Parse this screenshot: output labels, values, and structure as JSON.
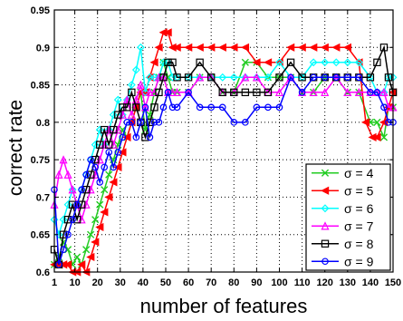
{
  "chart_data": {
    "type": "line",
    "xlabel": "number of features",
    "ylabel": "correct rate",
    "xlim": [
      1,
      150
    ],
    "ylim": [
      0.6,
      0.95
    ],
    "x_ticks": [
      1,
      10,
      20,
      30,
      40,
      50,
      60,
      70,
      80,
      90,
      100,
      110,
      120,
      130,
      140,
      150
    ],
    "y_ticks": [
      0.6,
      0.65,
      0.7,
      0.75,
      0.8,
      0.85,
      0.9,
      0.95
    ],
    "grid": true,
    "legend_position": "bottom-right",
    "series": [
      {
        "name": "σ = 4",
        "color": "#22cc22",
        "marker": "x",
        "points": [
          [
            1,
            0.61
          ],
          [
            3,
            0.62
          ],
          [
            5,
            0.64
          ],
          [
            7,
            0.63
          ],
          [
            9,
            0.61
          ],
          [
            11,
            0.62
          ],
          [
            13,
            0.61
          ],
          [
            15,
            0.63
          ],
          [
            17,
            0.65
          ],
          [
            19,
            0.67
          ],
          [
            21,
            0.69
          ],
          [
            23,
            0.71
          ],
          [
            25,
            0.73
          ],
          [
            27,
            0.75
          ],
          [
            29,
            0.77
          ],
          [
            31,
            0.79
          ],
          [
            33,
            0.78
          ],
          [
            35,
            0.8
          ],
          [
            37,
            0.82
          ],
          [
            39,
            0.84
          ],
          [
            41,
            0.79
          ],
          [
            43,
            0.81
          ],
          [
            45,
            0.84
          ],
          [
            47,
            0.86
          ],
          [
            49,
            0.88
          ],
          [
            51,
            0.86
          ],
          [
            53,
            0.84
          ],
          [
            55,
            0.84
          ],
          [
            60,
            0.84
          ],
          [
            65,
            0.86
          ],
          [
            70,
            0.86
          ],
          [
            75,
            0.84
          ],
          [
            80,
            0.84
          ],
          [
            85,
            0.88
          ],
          [
            90,
            0.88
          ],
          [
            95,
            0.86
          ],
          [
            100,
            0.86
          ],
          [
            105,
            0.86
          ],
          [
            110,
            0.84
          ],
          [
            115,
            0.84
          ],
          [
            120,
            0.86
          ],
          [
            125,
            0.86
          ],
          [
            130,
            0.84
          ],
          [
            135,
            0.84
          ],
          [
            140,
            0.8
          ],
          [
            143,
            0.8
          ],
          [
            146,
            0.78
          ],
          [
            148,
            0.82
          ],
          [
            150,
            0.82
          ]
        ]
      },
      {
        "name": "σ = 5",
        "color": "#ff0000",
        "marker": "triangle-left",
        "points": [
          [
            1,
            0.61
          ],
          [
            3,
            0.61
          ],
          [
            5,
            0.61
          ],
          [
            7,
            0.61
          ],
          [
            9,
            0.6
          ],
          [
            11,
            0.6
          ],
          [
            13,
            0.61
          ],
          [
            15,
            0.6
          ],
          [
            17,
            0.62
          ],
          [
            19,
            0.64
          ],
          [
            21,
            0.66
          ],
          [
            23,
            0.68
          ],
          [
            25,
            0.7
          ],
          [
            27,
            0.72
          ],
          [
            29,
            0.74
          ],
          [
            31,
            0.76
          ],
          [
            33,
            0.78
          ],
          [
            35,
            0.8
          ],
          [
            37,
            0.82
          ],
          [
            39,
            0.84
          ],
          [
            41,
            0.84
          ],
          [
            43,
            0.86
          ],
          [
            45,
            0.88
          ],
          [
            47,
            0.9
          ],
          [
            49,
            0.92
          ],
          [
            51,
            0.92
          ],
          [
            53,
            0.9
          ],
          [
            55,
            0.9
          ],
          [
            60,
            0.9
          ],
          [
            65,
            0.9
          ],
          [
            70,
            0.9
          ],
          [
            75,
            0.9
          ],
          [
            80,
            0.9
          ],
          [
            85,
            0.9
          ],
          [
            90,
            0.88
          ],
          [
            95,
            0.88
          ],
          [
            100,
            0.88
          ],
          [
            105,
            0.9
          ],
          [
            110,
            0.9
          ],
          [
            115,
            0.9
          ],
          [
            120,
            0.9
          ],
          [
            125,
            0.9
          ],
          [
            130,
            0.9
          ],
          [
            135,
            0.88
          ],
          [
            138,
            0.8
          ],
          [
            141,
            0.78
          ],
          [
            143,
            0.78
          ],
          [
            146,
            0.8
          ],
          [
            148,
            0.82
          ],
          [
            150,
            0.84
          ]
        ]
      },
      {
        "name": "σ = 6",
        "color": "#00ffff",
        "marker": "diamond",
        "points": [
          [
            1,
            0.67
          ],
          [
            3,
            0.65
          ],
          [
            5,
            0.67
          ],
          [
            7,
            0.69
          ],
          [
            9,
            0.71
          ],
          [
            11,
            0.69
          ],
          [
            13,
            0.71
          ],
          [
            15,
            0.73
          ],
          [
            17,
            0.75
          ],
          [
            19,
            0.77
          ],
          [
            21,
            0.79
          ],
          [
            23,
            0.77
          ],
          [
            25,
            0.79
          ],
          [
            27,
            0.81
          ],
          [
            29,
            0.83
          ],
          [
            31,
            0.81
          ],
          [
            33,
            0.83
          ],
          [
            35,
            0.85
          ],
          [
            37,
            0.87
          ],
          [
            39,
            0.9
          ],
          [
            41,
            0.84
          ],
          [
            43,
            0.86
          ],
          [
            45,
            0.86
          ],
          [
            47,
            0.86
          ],
          [
            49,
            0.88
          ],
          [
            51,
            0.88
          ],
          [
            53,
            0.86
          ],
          [
            55,
            0.86
          ],
          [
            60,
            0.86
          ],
          [
            65,
            0.86
          ],
          [
            70,
            0.86
          ],
          [
            75,
            0.86
          ],
          [
            80,
            0.86
          ],
          [
            85,
            0.86
          ],
          [
            90,
            0.86
          ],
          [
            95,
            0.86
          ],
          [
            100,
            0.88
          ],
          [
            105,
            0.86
          ],
          [
            110,
            0.86
          ],
          [
            115,
            0.88
          ],
          [
            120,
            0.88
          ],
          [
            125,
            0.88
          ],
          [
            130,
            0.88
          ],
          [
            135,
            0.88
          ],
          [
            140,
            0.86
          ],
          [
            143,
            0.84
          ],
          [
            146,
            0.84
          ],
          [
            148,
            0.86
          ],
          [
            150,
            0.86
          ]
        ]
      },
      {
        "name": "σ = 7",
        "color": "#ff00ff",
        "marker": "triangle-up",
        "points": [
          [
            1,
            0.69
          ],
          [
            3,
            0.73
          ],
          [
            5,
            0.75
          ],
          [
            7,
            0.73
          ],
          [
            9,
            0.71
          ],
          [
            11,
            0.69
          ],
          [
            13,
            0.67
          ],
          [
            15,
            0.69
          ],
          [
            17,
            0.71
          ],
          [
            19,
            0.73
          ],
          [
            21,
            0.75
          ],
          [
            23,
            0.77
          ],
          [
            25,
            0.79
          ],
          [
            27,
            0.77
          ],
          [
            29,
            0.79
          ],
          [
            31,
            0.81
          ],
          [
            33,
            0.83
          ],
          [
            35,
            0.81
          ],
          [
            37,
            0.83
          ],
          [
            39,
            0.85
          ],
          [
            41,
            0.82
          ],
          [
            43,
            0.84
          ],
          [
            45,
            0.84
          ],
          [
            47,
            0.86
          ],
          [
            49,
            0.86
          ],
          [
            51,
            0.84
          ],
          [
            53,
            0.84
          ],
          [
            55,
            0.84
          ],
          [
            60,
            0.84
          ],
          [
            65,
            0.86
          ],
          [
            70,
            0.86
          ],
          [
            75,
            0.84
          ],
          [
            80,
            0.84
          ],
          [
            85,
            0.86
          ],
          [
            90,
            0.86
          ],
          [
            95,
            0.84
          ],
          [
            100,
            0.84
          ],
          [
            105,
            0.86
          ],
          [
            110,
            0.84
          ],
          [
            115,
            0.84
          ],
          [
            120,
            0.84
          ],
          [
            125,
            0.86
          ],
          [
            130,
            0.84
          ],
          [
            135,
            0.84
          ],
          [
            140,
            0.84
          ],
          [
            143,
            0.84
          ],
          [
            146,
            0.84
          ],
          [
            148,
            0.82
          ],
          [
            150,
            0.82
          ]
        ]
      },
      {
        "name": "σ = 8",
        "color": "#000000",
        "marker": "square",
        "points": [
          [
            1,
            0.63
          ],
          [
            3,
            0.61
          ],
          [
            5,
            0.65
          ],
          [
            7,
            0.67
          ],
          [
            9,
            0.69
          ],
          [
            11,
            0.67
          ],
          [
            13,
            0.69
          ],
          [
            15,
            0.71
          ],
          [
            17,
            0.73
          ],
          [
            19,
            0.75
          ],
          [
            21,
            0.77
          ],
          [
            23,
            0.79
          ],
          [
            25,
            0.77
          ],
          [
            27,
            0.79
          ],
          [
            29,
            0.81
          ],
          [
            31,
            0.82
          ],
          [
            33,
            0.82
          ],
          [
            35,
            0.84
          ],
          [
            37,
            0.82
          ],
          [
            39,
            0.8
          ],
          [
            41,
            0.78
          ],
          [
            43,
            0.8
          ],
          [
            45,
            0.82
          ],
          [
            47,
            0.84
          ],
          [
            49,
            0.86
          ],
          [
            51,
            0.88
          ],
          [
            53,
            0.88
          ],
          [
            55,
            0.86
          ],
          [
            60,
            0.86
          ],
          [
            65,
            0.88
          ],
          [
            70,
            0.86
          ],
          [
            75,
            0.84
          ],
          [
            80,
            0.84
          ],
          [
            85,
            0.84
          ],
          [
            90,
            0.84
          ],
          [
            95,
            0.84
          ],
          [
            100,
            0.86
          ],
          [
            105,
            0.88
          ],
          [
            110,
            0.86
          ],
          [
            115,
            0.86
          ],
          [
            120,
            0.86
          ],
          [
            125,
            0.86
          ],
          [
            130,
            0.86
          ],
          [
            135,
            0.86
          ],
          [
            140,
            0.86
          ],
          [
            143,
            0.88
          ],
          [
            146,
            0.9
          ],
          [
            148,
            0.86
          ],
          [
            150,
            0.84
          ]
        ]
      },
      {
        "name": "σ = 9",
        "color": "#0000ff",
        "marker": "circle",
        "points": [
          [
            1,
            0.71
          ],
          [
            3,
            0.61
          ],
          [
            5,
            0.63
          ],
          [
            7,
            0.65
          ],
          [
            9,
            0.67
          ],
          [
            11,
            0.69
          ],
          [
            13,
            0.71
          ],
          [
            15,
            0.73
          ],
          [
            17,
            0.75
          ],
          [
            19,
            0.74
          ],
          [
            21,
            0.72
          ],
          [
            23,
            0.74
          ],
          [
            25,
            0.76
          ],
          [
            27,
            0.74
          ],
          [
            29,
            0.76
          ],
          [
            31,
            0.78
          ],
          [
            33,
            0.8
          ],
          [
            35,
            0.8
          ],
          [
            37,
            0.78
          ],
          [
            39,
            0.8
          ],
          [
            41,
            0.82
          ],
          [
            43,
            0.78
          ],
          [
            45,
            0.8
          ],
          [
            47,
            0.8
          ],
          [
            49,
            0.82
          ],
          [
            51,
            0.84
          ],
          [
            53,
            0.82
          ],
          [
            55,
            0.82
          ],
          [
            60,
            0.84
          ],
          [
            65,
            0.82
          ],
          [
            70,
            0.82
          ],
          [
            75,
            0.82
          ],
          [
            80,
            0.8
          ],
          [
            85,
            0.8
          ],
          [
            90,
            0.82
          ],
          [
            95,
            0.82
          ],
          [
            100,
            0.82
          ],
          [
            105,
            0.86
          ],
          [
            110,
            0.84
          ],
          [
            115,
            0.86
          ],
          [
            120,
            0.86
          ],
          [
            125,
            0.86
          ],
          [
            130,
            0.86
          ],
          [
            135,
            0.86
          ],
          [
            140,
            0.84
          ],
          [
            143,
            0.84
          ],
          [
            146,
            0.82
          ],
          [
            148,
            0.8
          ],
          [
            150,
            0.8
          ]
        ]
      }
    ]
  }
}
